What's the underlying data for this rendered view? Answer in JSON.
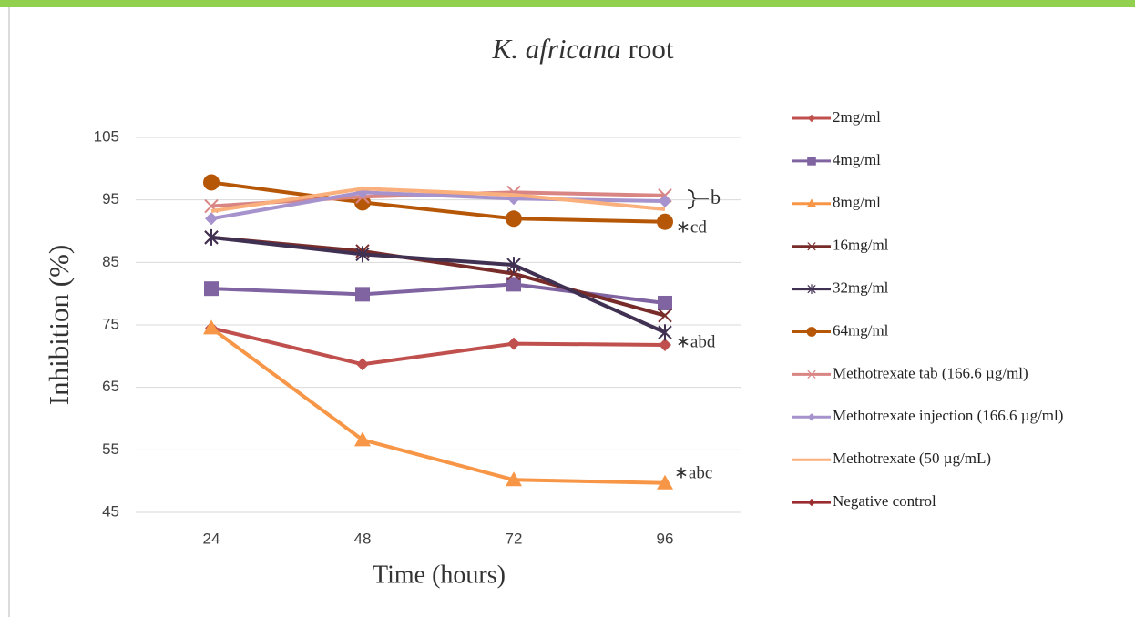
{
  "chart_data": {
    "type": "line",
    "title": "K. africana root",
    "x_label": "Time (hours)",
    "y_label": "Inhibition (%)",
    "categories": [
      "24",
      "48",
      "72",
      "96"
    ],
    "ylim": [
      45,
      105
    ],
    "yticks": [
      45,
      55,
      65,
      75,
      85,
      95,
      105
    ],
    "grid": true,
    "legend": "right",
    "series": [
      {
        "name": "2mg/ml",
        "color": "#c0504d",
        "marker": "diamond",
        "values": [
          74.5,
          68.7,
          72,
          71.8
        ]
      },
      {
        "name": "4mg/ml",
        "color": "#8064a2",
        "marker": "square",
        "values": [
          80.8,
          79.9,
          81.5,
          78.5
        ]
      },
      {
        "name": "8mg/ml",
        "color": "#f79646",
        "marker": "triangle",
        "values": [
          74.5,
          56.6,
          50.2,
          49.7
        ]
      },
      {
        "name": "16mg/ml",
        "color": "#772c2a",
        "marker": "x",
        "values": [
          89,
          86.8,
          83.2,
          76.5
        ]
      },
      {
        "name": "32mg/ml",
        "color": "#403152",
        "marker": "star",
        "values": [
          89,
          86.3,
          84.6,
          73.8
        ]
      },
      {
        "name": "64mg/ml",
        "color": "#b65708",
        "marker": "circle",
        "values": [
          97.8,
          94.6,
          92,
          91.5
        ]
      },
      {
        "name": "Methotrexate tab (166.6 µg/ml)",
        "color": "#d98583",
        "marker": "x",
        "values": [
          94,
          95.5,
          96.2,
          95.7
        ]
      },
      {
        "name": "Methotrexate injection (166.6 µg/ml)",
        "color": "#a692cc",
        "marker": "diamond",
        "values": [
          92,
          96.2,
          95.2,
          94.8
        ]
      },
      {
        "name": "Methotrexate (50 µg/mL)",
        "color": "#fab07c",
        "marker": "none",
        "values": [
          93.2,
          96.8,
          95.8,
          93.5
        ]
      },
      {
        "name": "Negative control",
        "color": "#9b2d30",
        "marker": "diamond",
        "values": [
          null,
          null,
          null,
          null
        ]
      }
    ],
    "annotations": [
      "b",
      "∗cd",
      "∗abd",
      "∗abc"
    ]
  }
}
